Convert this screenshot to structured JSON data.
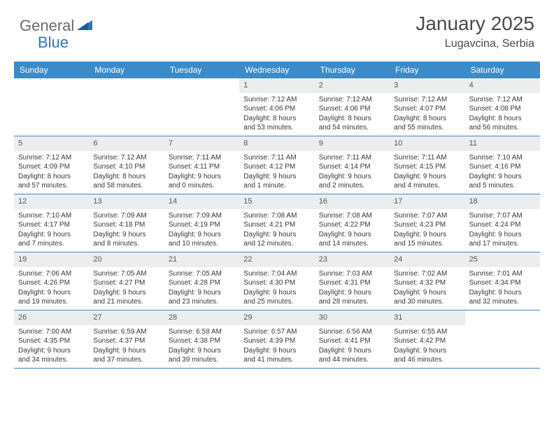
{
  "brand": {
    "part1": "General",
    "part2": "Blue"
  },
  "title": "January 2025",
  "location": "Lugavcina, Serbia",
  "colors": {
    "header_bg": "#3b8bc9",
    "header_text": "#ffffff",
    "daynum_bg": "#ecedef",
    "border": "#3b8bc9",
    "brand_gray": "#6b6b6b",
    "brand_blue": "#2f75b5",
    "text": "#383838",
    "background": "#ffffff"
  },
  "fonts": {
    "title_size": 28,
    "location_size": 16,
    "header_size": 12,
    "cell_size": 10
  },
  "day_names": [
    "Sunday",
    "Monday",
    "Tuesday",
    "Wednesday",
    "Thursday",
    "Friday",
    "Saturday"
  ],
  "weeks": [
    [
      {
        "day": "",
        "sunrise": "",
        "sunset": "",
        "daylight1": "",
        "daylight2": ""
      },
      {
        "day": "",
        "sunrise": "",
        "sunset": "",
        "daylight1": "",
        "daylight2": ""
      },
      {
        "day": "",
        "sunrise": "",
        "sunset": "",
        "daylight1": "",
        "daylight2": ""
      },
      {
        "day": "1",
        "sunrise": "Sunrise: 7:12 AM",
        "sunset": "Sunset: 4:06 PM",
        "daylight1": "Daylight: 8 hours",
        "daylight2": "and 53 minutes."
      },
      {
        "day": "2",
        "sunrise": "Sunrise: 7:12 AM",
        "sunset": "Sunset: 4:06 PM",
        "daylight1": "Daylight: 8 hours",
        "daylight2": "and 54 minutes."
      },
      {
        "day": "3",
        "sunrise": "Sunrise: 7:12 AM",
        "sunset": "Sunset: 4:07 PM",
        "daylight1": "Daylight: 8 hours",
        "daylight2": "and 55 minutes."
      },
      {
        "day": "4",
        "sunrise": "Sunrise: 7:12 AM",
        "sunset": "Sunset: 4:08 PM",
        "daylight1": "Daylight: 8 hours",
        "daylight2": "and 56 minutes."
      }
    ],
    [
      {
        "day": "5",
        "sunrise": "Sunrise: 7:12 AM",
        "sunset": "Sunset: 4:09 PM",
        "daylight1": "Daylight: 8 hours",
        "daylight2": "and 57 minutes."
      },
      {
        "day": "6",
        "sunrise": "Sunrise: 7:12 AM",
        "sunset": "Sunset: 4:10 PM",
        "daylight1": "Daylight: 8 hours",
        "daylight2": "and 58 minutes."
      },
      {
        "day": "7",
        "sunrise": "Sunrise: 7:11 AM",
        "sunset": "Sunset: 4:11 PM",
        "daylight1": "Daylight: 9 hours",
        "daylight2": "and 0 minutes."
      },
      {
        "day": "8",
        "sunrise": "Sunrise: 7:11 AM",
        "sunset": "Sunset: 4:12 PM",
        "daylight1": "Daylight: 9 hours",
        "daylight2": "and 1 minute."
      },
      {
        "day": "9",
        "sunrise": "Sunrise: 7:11 AM",
        "sunset": "Sunset: 4:14 PM",
        "daylight1": "Daylight: 9 hours",
        "daylight2": "and 2 minutes."
      },
      {
        "day": "10",
        "sunrise": "Sunrise: 7:11 AM",
        "sunset": "Sunset: 4:15 PM",
        "daylight1": "Daylight: 9 hours",
        "daylight2": "and 4 minutes."
      },
      {
        "day": "11",
        "sunrise": "Sunrise: 7:10 AM",
        "sunset": "Sunset: 4:16 PM",
        "daylight1": "Daylight: 9 hours",
        "daylight2": "and 5 minutes."
      }
    ],
    [
      {
        "day": "12",
        "sunrise": "Sunrise: 7:10 AM",
        "sunset": "Sunset: 4:17 PM",
        "daylight1": "Daylight: 9 hours",
        "daylight2": "and 7 minutes."
      },
      {
        "day": "13",
        "sunrise": "Sunrise: 7:09 AM",
        "sunset": "Sunset: 4:18 PM",
        "daylight1": "Daylight: 9 hours",
        "daylight2": "and 8 minutes."
      },
      {
        "day": "14",
        "sunrise": "Sunrise: 7:09 AM",
        "sunset": "Sunset: 4:19 PM",
        "daylight1": "Daylight: 9 hours",
        "daylight2": "and 10 minutes."
      },
      {
        "day": "15",
        "sunrise": "Sunrise: 7:08 AM",
        "sunset": "Sunset: 4:21 PM",
        "daylight1": "Daylight: 9 hours",
        "daylight2": "and 12 minutes."
      },
      {
        "day": "16",
        "sunrise": "Sunrise: 7:08 AM",
        "sunset": "Sunset: 4:22 PM",
        "daylight1": "Daylight: 9 hours",
        "daylight2": "and 14 minutes."
      },
      {
        "day": "17",
        "sunrise": "Sunrise: 7:07 AM",
        "sunset": "Sunset: 4:23 PM",
        "daylight1": "Daylight: 9 hours",
        "daylight2": "and 15 minutes."
      },
      {
        "day": "18",
        "sunrise": "Sunrise: 7:07 AM",
        "sunset": "Sunset: 4:24 PM",
        "daylight1": "Daylight: 9 hours",
        "daylight2": "and 17 minutes."
      }
    ],
    [
      {
        "day": "19",
        "sunrise": "Sunrise: 7:06 AM",
        "sunset": "Sunset: 4:26 PM",
        "daylight1": "Daylight: 9 hours",
        "daylight2": "and 19 minutes."
      },
      {
        "day": "20",
        "sunrise": "Sunrise: 7:05 AM",
        "sunset": "Sunset: 4:27 PM",
        "daylight1": "Daylight: 9 hours",
        "daylight2": "and 21 minutes."
      },
      {
        "day": "21",
        "sunrise": "Sunrise: 7:05 AM",
        "sunset": "Sunset: 4:28 PM",
        "daylight1": "Daylight: 9 hours",
        "daylight2": "and 23 minutes."
      },
      {
        "day": "22",
        "sunrise": "Sunrise: 7:04 AM",
        "sunset": "Sunset: 4:30 PM",
        "daylight1": "Daylight: 9 hours",
        "daylight2": "and 25 minutes."
      },
      {
        "day": "23",
        "sunrise": "Sunrise: 7:03 AM",
        "sunset": "Sunset: 4:31 PM",
        "daylight1": "Daylight: 9 hours",
        "daylight2": "and 28 minutes."
      },
      {
        "day": "24",
        "sunrise": "Sunrise: 7:02 AM",
        "sunset": "Sunset: 4:32 PM",
        "daylight1": "Daylight: 9 hours",
        "daylight2": "and 30 minutes."
      },
      {
        "day": "25",
        "sunrise": "Sunrise: 7:01 AM",
        "sunset": "Sunset: 4:34 PM",
        "daylight1": "Daylight: 9 hours",
        "daylight2": "and 32 minutes."
      }
    ],
    [
      {
        "day": "26",
        "sunrise": "Sunrise: 7:00 AM",
        "sunset": "Sunset: 4:35 PM",
        "daylight1": "Daylight: 9 hours",
        "daylight2": "and 34 minutes."
      },
      {
        "day": "27",
        "sunrise": "Sunrise: 6:59 AM",
        "sunset": "Sunset: 4:37 PM",
        "daylight1": "Daylight: 9 hours",
        "daylight2": "and 37 minutes."
      },
      {
        "day": "28",
        "sunrise": "Sunrise: 6:58 AM",
        "sunset": "Sunset: 4:38 PM",
        "daylight1": "Daylight: 9 hours",
        "daylight2": "and 39 minutes."
      },
      {
        "day": "29",
        "sunrise": "Sunrise: 6:57 AM",
        "sunset": "Sunset: 4:39 PM",
        "daylight1": "Daylight: 9 hours",
        "daylight2": "and 41 minutes."
      },
      {
        "day": "30",
        "sunrise": "Sunrise: 6:56 AM",
        "sunset": "Sunset: 4:41 PM",
        "daylight1": "Daylight: 9 hours",
        "daylight2": "and 44 minutes."
      },
      {
        "day": "31",
        "sunrise": "Sunrise: 6:55 AM",
        "sunset": "Sunset: 4:42 PM",
        "daylight1": "Daylight: 9 hours",
        "daylight2": "and 46 minutes."
      },
      {
        "day": "",
        "sunrise": "",
        "sunset": "",
        "daylight1": "",
        "daylight2": ""
      }
    ]
  ]
}
